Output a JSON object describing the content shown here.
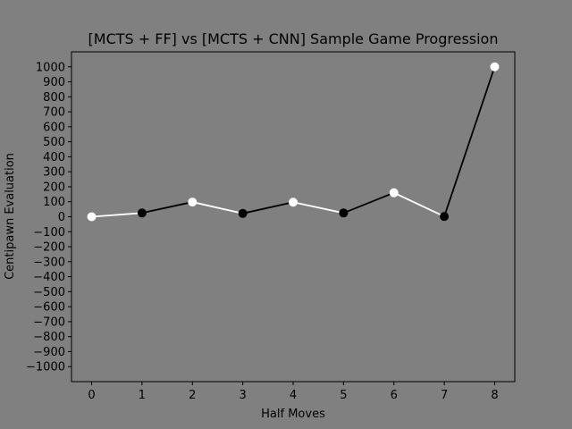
{
  "chart_data": {
    "type": "line",
    "title": "[MCTS + FF] vs [MCTS + CNN] Sample Game Progression",
    "xlabel": "Half Moves",
    "ylabel": "Centipawn Evaluation",
    "x": [
      0,
      1,
      2,
      3,
      4,
      5,
      6,
      7,
      8
    ],
    "y": [
      0,
      25,
      98,
      22,
      97,
      25,
      160,
      2,
      1000
    ],
    "xlim": [
      -0.4,
      8.4
    ],
    "ylim": [
      -1100,
      1100
    ],
    "xticks": [
      "0",
      "1",
      "2",
      "3",
      "4",
      "5",
      "6",
      "7",
      "8"
    ],
    "yticks": [
      "1000",
      "900",
      "800",
      "700",
      "600",
      "500",
      "400",
      "300",
      "200",
      "100",
      "0",
      "−100",
      "−200",
      "−300",
      "−400",
      "−500",
      "−600",
      "−700",
      "−800",
      "−900",
      "−1000"
    ],
    "ytick_values": [
      1000,
      900,
      800,
      700,
      600,
      500,
      400,
      300,
      200,
      100,
      0,
      -100,
      -200,
      -300,
      -400,
      -500,
      -600,
      -700,
      -800,
      -900,
      -1000
    ],
    "segment_colors": [
      "#ffffff",
      "#000000",
      "#ffffff",
      "#000000",
      "#ffffff",
      "#000000",
      "#ffffff",
      "#000000"
    ],
    "point_colors": [
      "#ffffff",
      "#000000",
      "#ffffff",
      "#000000",
      "#ffffff",
      "#000000",
      "#ffffff",
      "#000000",
      "#ffffff"
    ],
    "background": "#808080",
    "plot_background": "#000000",
    "grid": false,
    "legend": "none"
  }
}
